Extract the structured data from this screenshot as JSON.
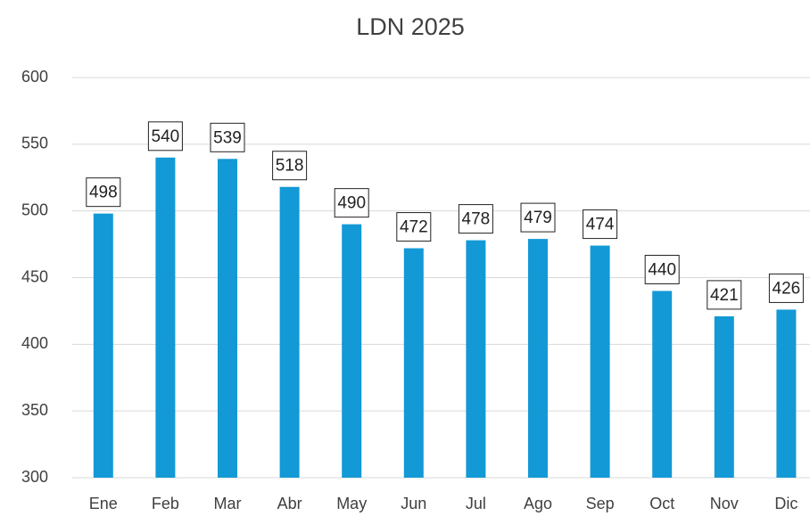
{
  "chart_data": {
    "type": "bar",
    "title": "LDN 2025",
    "categories": [
      "Ene",
      "Feb",
      "Mar",
      "Abr",
      "May",
      "Jun",
      "Jul",
      "Ago",
      "Sep",
      "Oct",
      "Nov",
      "Dic"
    ],
    "values": [
      498,
      540,
      539,
      518,
      490,
      472,
      478,
      479,
      474,
      440,
      421,
      426
    ],
    "color": "#1399d6",
    "ylim": [
      300,
      600
    ],
    "yticks": [
      300,
      350,
      400,
      450,
      500,
      550,
      600
    ],
    "grid": true
  }
}
